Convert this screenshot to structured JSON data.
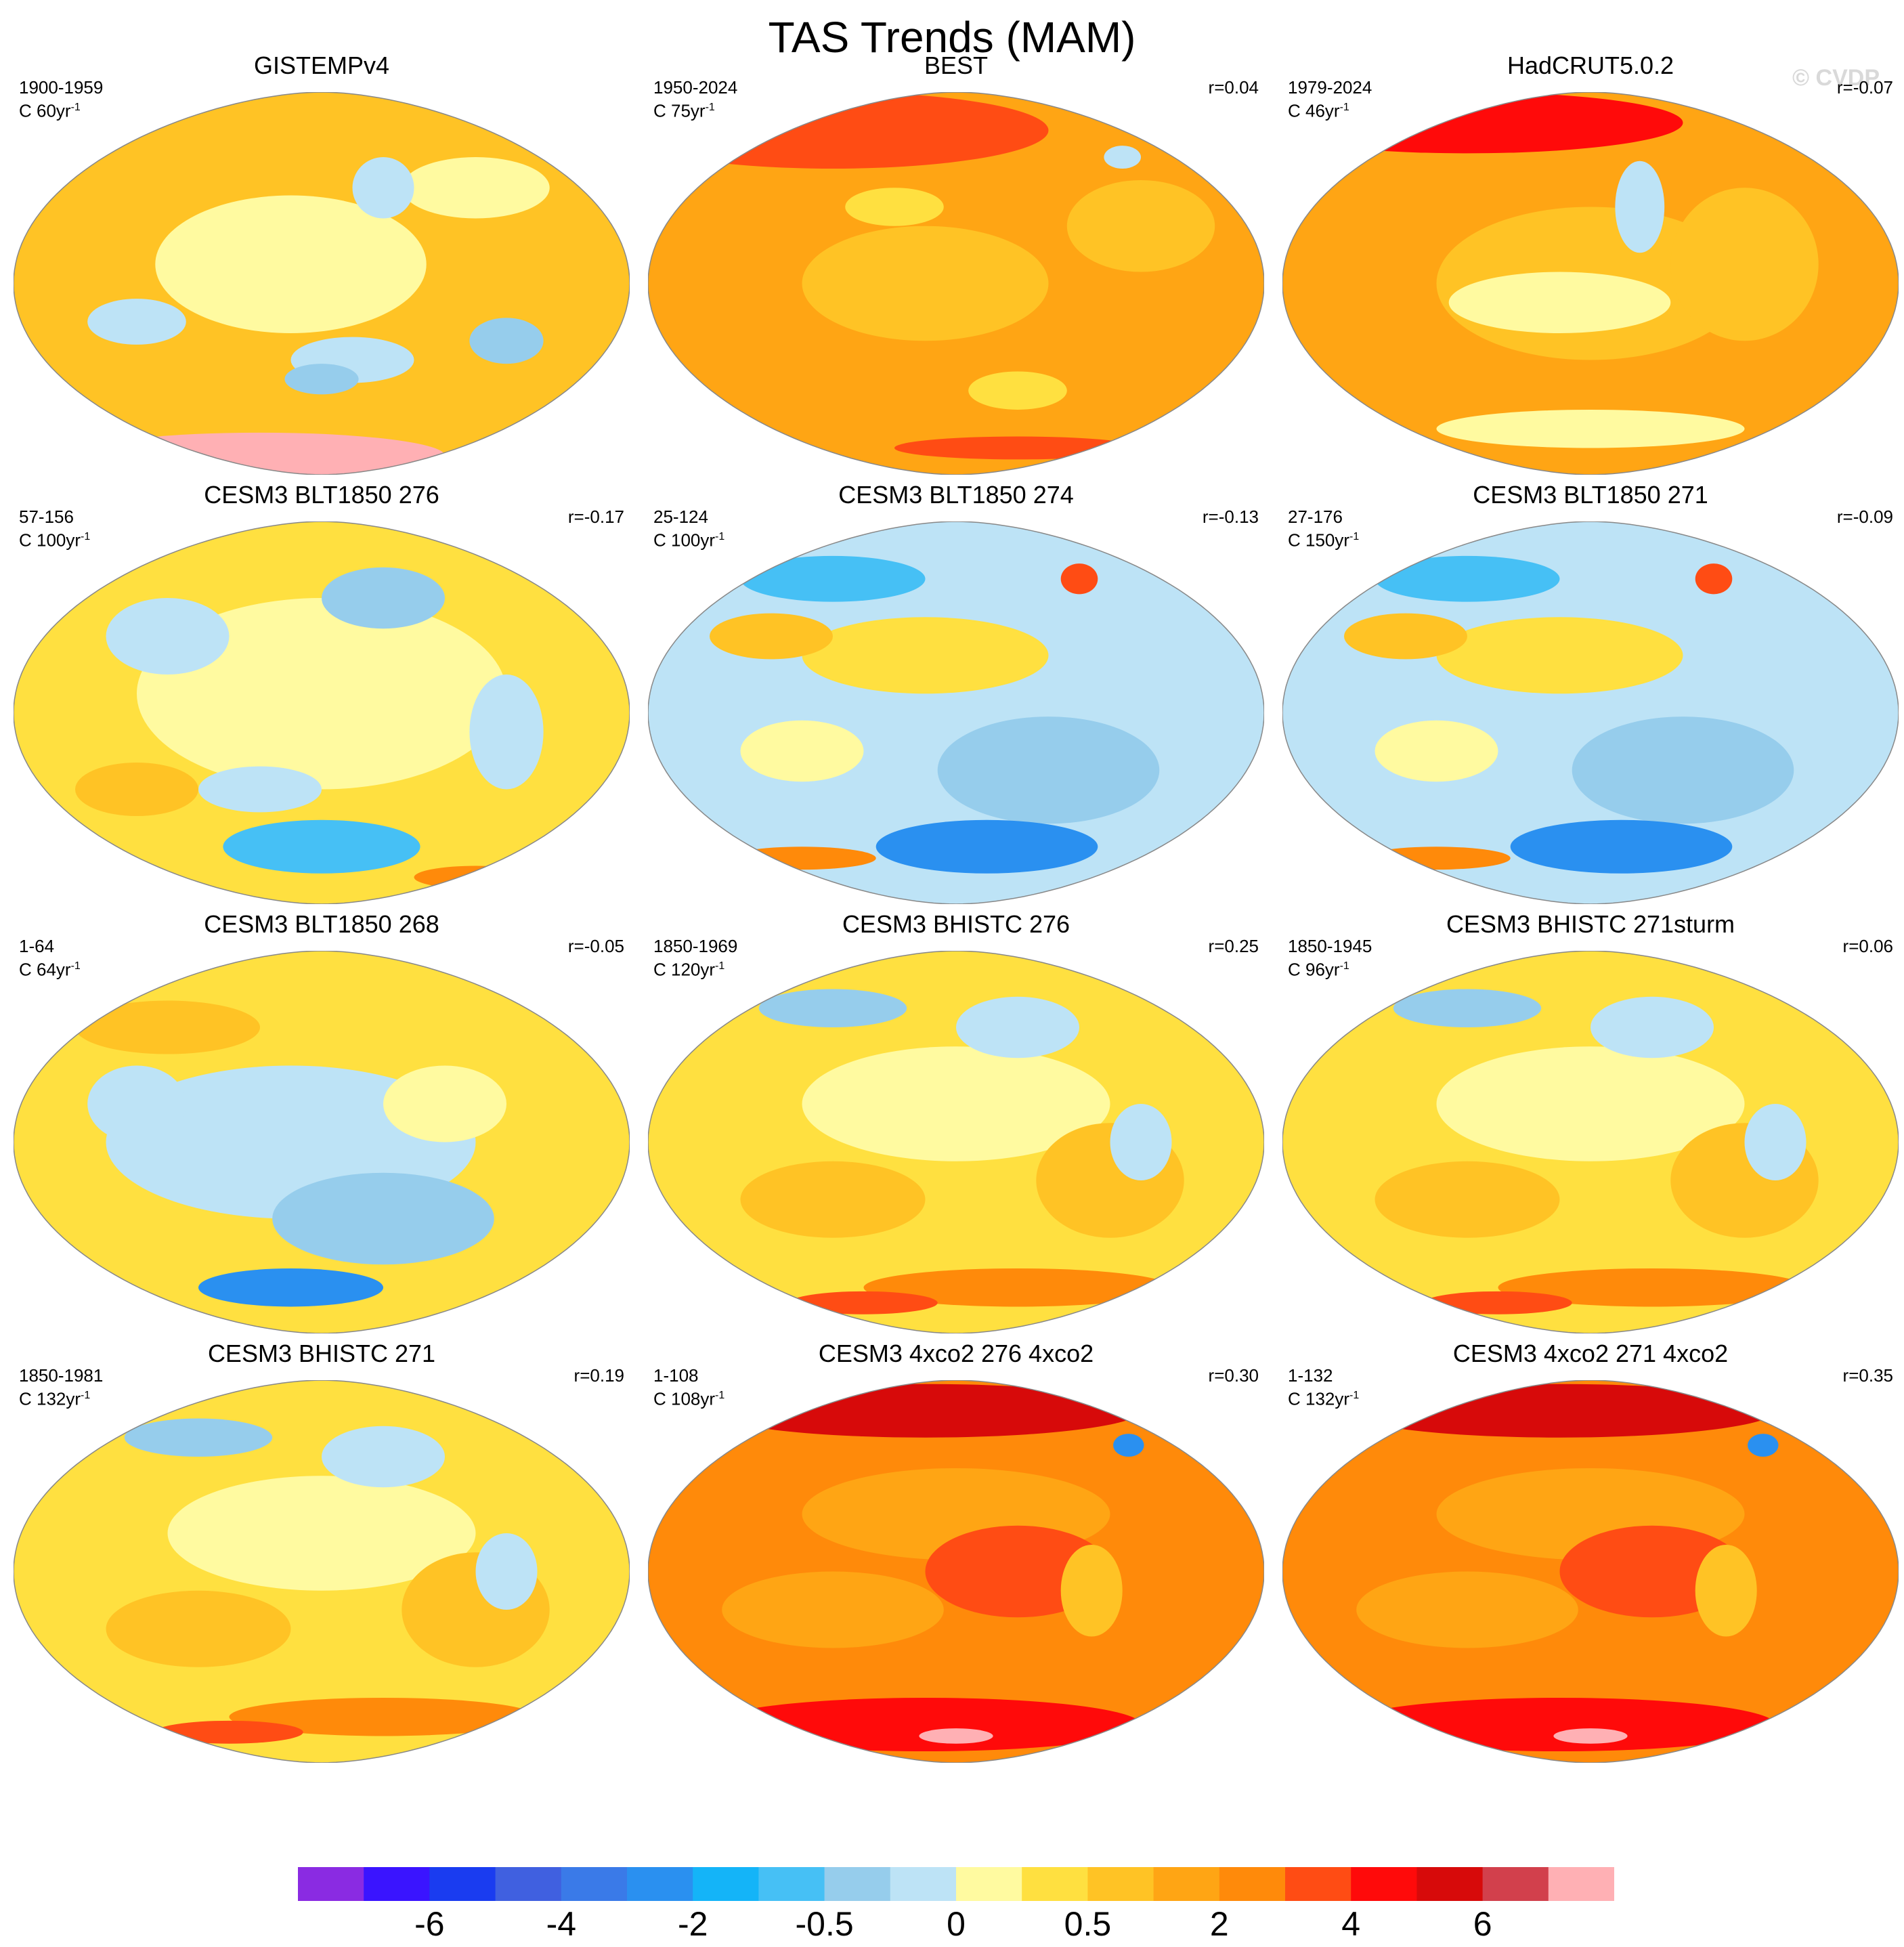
{
  "figure": {
    "title": "TAS Trends (MAM)",
    "copyright": "© CVDP"
  },
  "chart_data": {
    "type": "heatmap",
    "title": "TAS Trends (MAM)",
    "projection": "Robinson (global)",
    "panels": [
      {
        "title": "GISTEMPv4",
        "period": "1900-1959",
        "trend_unit": "C 60yr",
        "r": "",
        "pattern": "obs_early"
      },
      {
        "title": "BEST",
        "period": "1950-2024",
        "trend_unit": "C 75yr",
        "r": "r=0.04",
        "pattern": "warm"
      },
      {
        "title": "HadCRUT5.0.2",
        "period": "1979-2024",
        "trend_unit": "C 46yr",
        "r": "r=-0.07",
        "pattern": "warm_mod"
      },
      {
        "title": "CESM3 BLT1850 276",
        "period": "57-156",
        "trend_unit": "C 100yr",
        "r": "r=-0.17",
        "pattern": "neutral"
      },
      {
        "title": "CESM3 BLT1850 274",
        "period": "25-124",
        "trend_unit": "C 100yr",
        "r": "r=-0.13",
        "pattern": "cool"
      },
      {
        "title": "CESM3 BLT1850 271",
        "period": "27-176",
        "trend_unit": "C 150yr",
        "r": "r=-0.09",
        "pattern": "cool"
      },
      {
        "title": "CESM3 BLT1850 268",
        "period": "1-64",
        "trend_unit": "C 64yr",
        "r": "r=-0.05",
        "pattern": "cool_south"
      },
      {
        "title": "CESM3 BHISTC 276",
        "period": "1850-1969",
        "trend_unit": "C 120yr",
        "r": "r=0.25",
        "pattern": "mild"
      },
      {
        "title": "CESM3 BHISTC 271sturm",
        "period": "1850-1945",
        "trend_unit": "C 96yr",
        "r": "r=0.06",
        "pattern": "mild"
      },
      {
        "title": "CESM3 BHISTC 271",
        "period": "1850-1981",
        "trend_unit": "C 132yr",
        "r": "r=0.19",
        "pattern": "mild"
      },
      {
        "title": "CESM3 4xco2 276 4xco2",
        "period": "1-108",
        "trend_unit": "C 108yr",
        "r": "r=0.30",
        "pattern": "hot"
      },
      {
        "title": "CESM3 4xco2 271 4xco2",
        "period": "1-132",
        "trend_unit": "C 132yr",
        "r": "r=0.35",
        "pattern": "hot"
      }
    ],
    "colorbar": {
      "colors": [
        "#8a2be2",
        "#3a14ff",
        "#1a3cf0",
        "#4060e0",
        "#3a7ae8",
        "#2a90f0",
        "#14b4f8",
        "#46c0f5",
        "#96cdec",
        "#bde3f6",
        "#fffaa0",
        "#ffe040",
        "#ffc325",
        "#ffa514",
        "#ff8a0a",
        "#ff4c14",
        "#ff0a0a",
        "#d70a0a",
        "#d2404c",
        "#ffb0b4"
      ],
      "tick_labels": [
        "-6",
        "-4",
        "-2",
        "-0.5",
        "0",
        "0.5",
        "2",
        "4",
        "6"
      ],
      "tick_boundaries": [
        2,
        4,
        6,
        8,
        10,
        12,
        14,
        16,
        18
      ]
    }
  }
}
